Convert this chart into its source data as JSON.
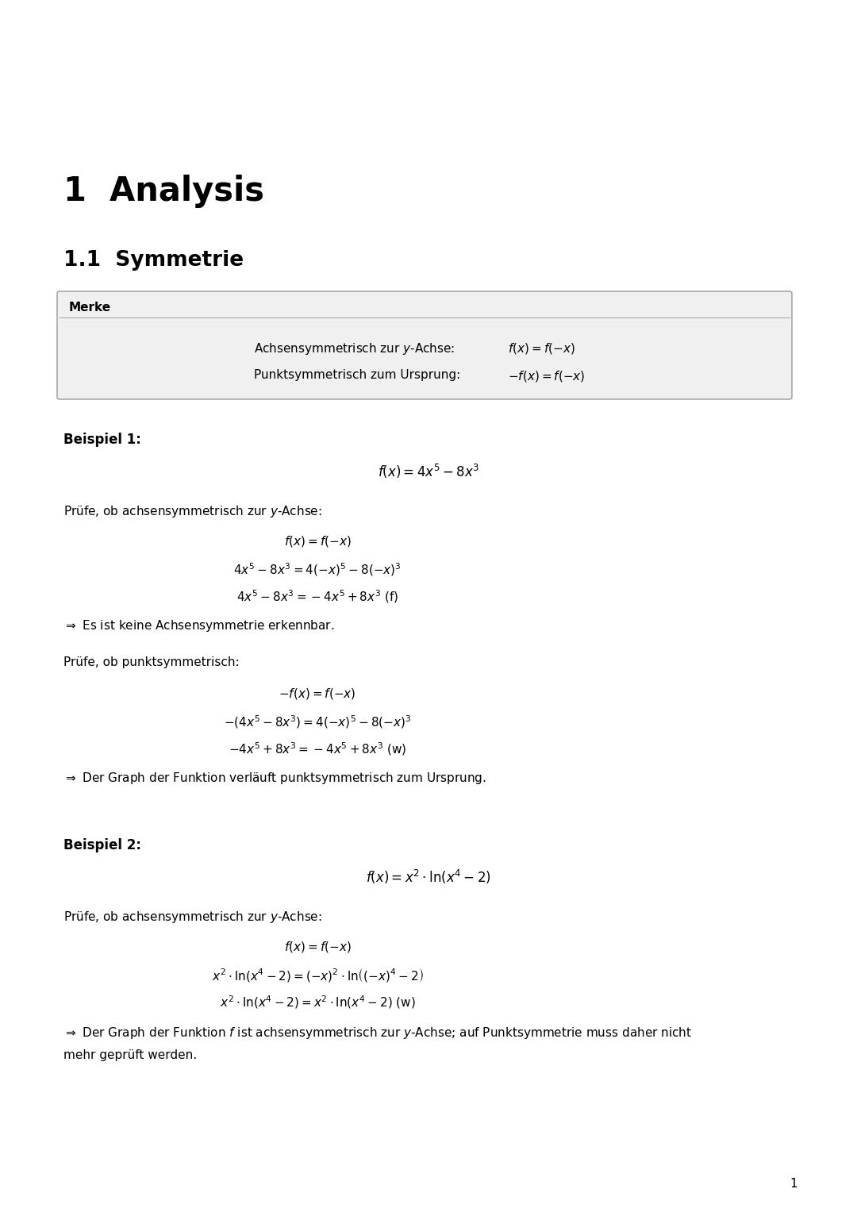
{
  "bg_color": "#ffffff",
  "page_number": "1",
  "chapter_title": "1  Analysis",
  "section_title": "1.1  Symmetrie",
  "merke_label": "Merke",
  "merke_line1_label": "Achsensymmetrisch zur $y$-Achse:",
  "merke_line1_formula": "$f(x) = f(-x)$",
  "merke_line2_label": "Punktsymmetrisch zum Ursprung:",
  "merke_line2_formula": "$-f(x) = f(-x)$",
  "beispiel1_label": "Beispiel 1:",
  "beispiel1_formula": "$f(x) = 4x^5 - 8x^3$",
  "beispiel1_pruefe_achs": "Prüfe, ob achsensymmetrisch zur $y$-Achse:",
  "beispiel1_achs_eq1": "$f(x) = f(-x)$",
  "beispiel1_achs_eq2": "$4x^5 - 8x^3 = 4(-x)^5 - 8(-x)^3$",
  "beispiel1_achs_eq3": "$4x^5 - 8x^3 = -4x^5 + 8x^3$ (f)",
  "beispiel1_achs_result": "$\\Rightarrow$ Es ist keine Achsensymmetrie erkennbar.",
  "beispiel1_pruefe_punkt": "Prüfe, ob punktsymmetrisch:",
  "beispiel1_punkt_eq1": "$-f(x) = f(-x)$",
  "beispiel1_punkt_eq2": "$-(4x^5 - 8x^3) = 4(-x)^5 - 8(-x)^3$",
  "beispiel1_punkt_eq3": "$-4x^5 + 8x^3 = -4x^5 + 8x^3$ (w)",
  "beispiel1_punkt_result": "$\\Rightarrow$ Der Graph der Funktion verläuft punktsymmetrisch zum Ursprung.",
  "beispiel2_label": "Beispiel 2:",
  "beispiel2_formula": "$f(x) = x^2 \\cdot \\ln(x^4 - 2)$",
  "beispiel2_pruefe_achs": "Prüfe, ob achsensymmetrisch zur $y$-Achse:",
  "beispiel2_achs_eq1": "$f(x) = f(-x)$",
  "beispiel2_achs_eq2": "$x^2 \\cdot \\ln(x^4 - 2) = (-x)^2 \\cdot \\ln\\!\\left((-x)^4 - 2\\right)$",
  "beispiel2_achs_eq3": "$x^2 \\cdot \\ln(x^4 - 2) = x^2 \\cdot \\ln(x^4 - 2)$ (w)",
  "beispiel2_achs_result_line1": "$\\Rightarrow$ Der Graph der Funktion $f$ ist achsensymmetrisch zur $y$-Achse; auf Punktsymmetrie muss daher nicht",
  "beispiel2_achs_result_line2": "mehr geprüft werden."
}
